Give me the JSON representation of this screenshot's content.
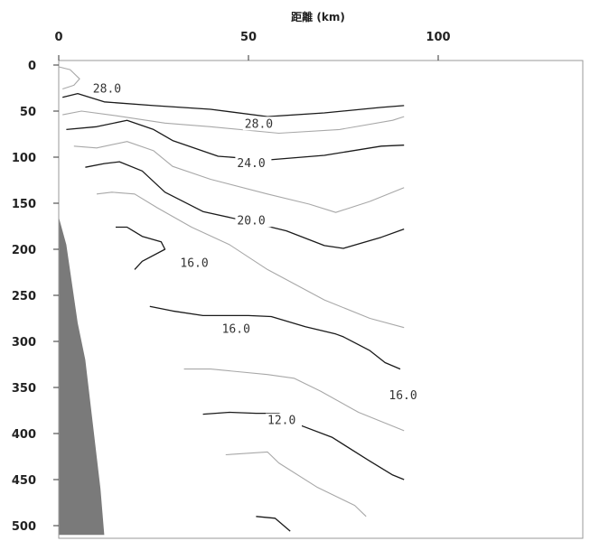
{
  "chart_data": {
    "type": "contour",
    "xlabel": "距離 (km)",
    "xlim": [
      0,
      140
    ],
    "ylim": [
      0,
      510
    ],
    "y_inverted": true,
    "x_ticks": [
      "0",
      "50",
      "100"
    ],
    "y_ticks": [
      "0",
      "50",
      "100",
      "150",
      "200",
      "250",
      "300",
      "350",
      "400",
      "450",
      "500"
    ],
    "colors": {
      "dark": "#1a1a1a",
      "light": "#a8a8a8",
      "terrain": "#7a7a7a",
      "frame": "#9a9a9a"
    },
    "terrain": [
      [
        0,
        165
      ],
      [
        2,
        195
      ],
      [
        5,
        280
      ],
      [
        7,
        320
      ],
      [
        9,
        390
      ],
      [
        11,
        460
      ],
      [
        12,
        510
      ],
      [
        0,
        510
      ]
    ],
    "contours": [
      {
        "id": "c-bowl",
        "style": "light",
        "points": [
          [
            0,
            2
          ],
          [
            3,
            5
          ],
          [
            5.5,
            15
          ],
          [
            4,
            22
          ],
          [
            1,
            26
          ]
        ]
      },
      {
        "id": "c-28a",
        "style": "dark",
        "points": [
          [
            1,
            35
          ],
          [
            5,
            31
          ],
          [
            12,
            40
          ],
          [
            25,
            44
          ],
          [
            40,
            48
          ],
          [
            55,
            56
          ],
          [
            70,
            52
          ],
          [
            85,
            46
          ],
          [
            91,
            44
          ]
        ]
      },
      {
        "id": "c-28b",
        "style": "light",
        "points": [
          [
            1,
            54
          ],
          [
            6,
            50
          ],
          [
            15,
            55
          ],
          [
            28,
            63
          ],
          [
            40,
            67
          ],
          [
            58,
            74
          ],
          [
            74,
            70
          ],
          [
            88,
            60
          ],
          [
            91,
            56
          ]
        ]
      },
      {
        "id": "c-24",
        "style": "dark",
        "points": [
          [
            2,
            70
          ],
          [
            10,
            67
          ],
          [
            18,
            60
          ],
          [
            25,
            70
          ],
          [
            30,
            82
          ],
          [
            42,
            99
          ],
          [
            55,
            103
          ],
          [
            70,
            98
          ],
          [
            85,
            88
          ],
          [
            91,
            87
          ]
        ]
      },
      {
        "id": "c-24b",
        "style": "light",
        "points": [
          [
            4,
            88
          ],
          [
            10,
            90
          ],
          [
            18,
            83
          ],
          [
            25,
            93
          ],
          [
            30,
            110
          ],
          [
            40,
            124
          ],
          [
            55,
            140
          ],
          [
            66,
            151
          ],
          [
            73,
            160
          ],
          [
            82,
            148
          ],
          [
            91,
            133
          ]
        ]
      },
      {
        "id": "c-20",
        "style": "dark",
        "points": [
          [
            7,
            111
          ],
          [
            12,
            107
          ],
          [
            16,
            105
          ],
          [
            22,
            115
          ],
          [
            28,
            138
          ],
          [
            38,
            159
          ],
          [
            50,
            170
          ],
          [
            60,
            180
          ],
          [
            70,
            196
          ],
          [
            75,
            199
          ],
          [
            85,
            187
          ],
          [
            91,
            178
          ]
        ]
      },
      {
        "id": "c-20b",
        "style": "light",
        "points": [
          [
            10,
            140
          ],
          [
            14,
            138
          ],
          [
            20,
            140
          ],
          [
            26,
            155
          ],
          [
            35,
            176
          ],
          [
            45,
            195
          ],
          [
            55,
            222
          ],
          [
            70,
            255
          ],
          [
            82,
            275
          ],
          [
            91,
            285
          ]
        ]
      },
      {
        "id": "c-16a",
        "style": "dark",
        "points": [
          [
            15,
            176
          ],
          [
            18,
            176
          ],
          [
            22,
            186
          ],
          [
            27,
            192
          ],
          [
            28,
            200
          ],
          [
            22,
            213
          ],
          [
            20,
            222
          ]
        ]
      },
      {
        "id": "c-16b",
        "style": "dark",
        "points": [
          [
            24,
            262
          ],
          [
            30,
            267
          ],
          [
            38,
            272
          ],
          [
            50,
            272
          ],
          [
            56,
            273
          ],
          [
            65,
            284
          ],
          [
            73,
            292
          ],
          [
            75,
            295
          ],
          [
            82,
            310
          ],
          [
            86,
            323
          ],
          [
            90,
            330
          ]
        ]
      },
      {
        "id": "c-14",
        "style": "light",
        "points": [
          [
            33,
            330
          ],
          [
            40,
            330
          ],
          [
            55,
            336
          ],
          [
            62,
            340
          ],
          [
            69,
            354
          ],
          [
            79,
            377
          ],
          [
            91,
            397
          ]
        ]
      },
      {
        "id": "c-12",
        "style": "dark",
        "points": [
          [
            38,
            379
          ],
          [
            45,
            377
          ],
          [
            52,
            378
          ],
          [
            58,
            378
          ],
          [
            63,
            390
          ],
          [
            72,
            404
          ],
          [
            82,
            430
          ],
          [
            88,
            445
          ],
          [
            91,
            450
          ]
        ]
      },
      {
        "id": "c-10",
        "style": "light",
        "points": [
          [
            44,
            423
          ],
          [
            55,
            420
          ],
          [
            58,
            432
          ],
          [
            68,
            458
          ],
          [
            78,
            478
          ],
          [
            81,
            490
          ]
        ]
      },
      {
        "id": "c-8",
        "style": "dark",
        "points": [
          [
            52,
            490
          ],
          [
            57,
            492
          ],
          [
            61,
            506
          ]
        ]
      }
    ],
    "contour_labels": [
      "28.0",
      "28.0",
      "24.0",
      "20.0",
      "16.0",
      "16.0",
      "16.0",
      "12.0"
    ],
    "label_positions": [
      [
        9,
        25
      ],
      [
        49,
        63
      ],
      [
        47,
        106
      ],
      [
        47,
        168
      ],
      [
        32,
        214
      ],
      [
        43,
        286
      ],
      [
        87,
        358
      ],
      [
        55,
        385
      ]
    ]
  }
}
